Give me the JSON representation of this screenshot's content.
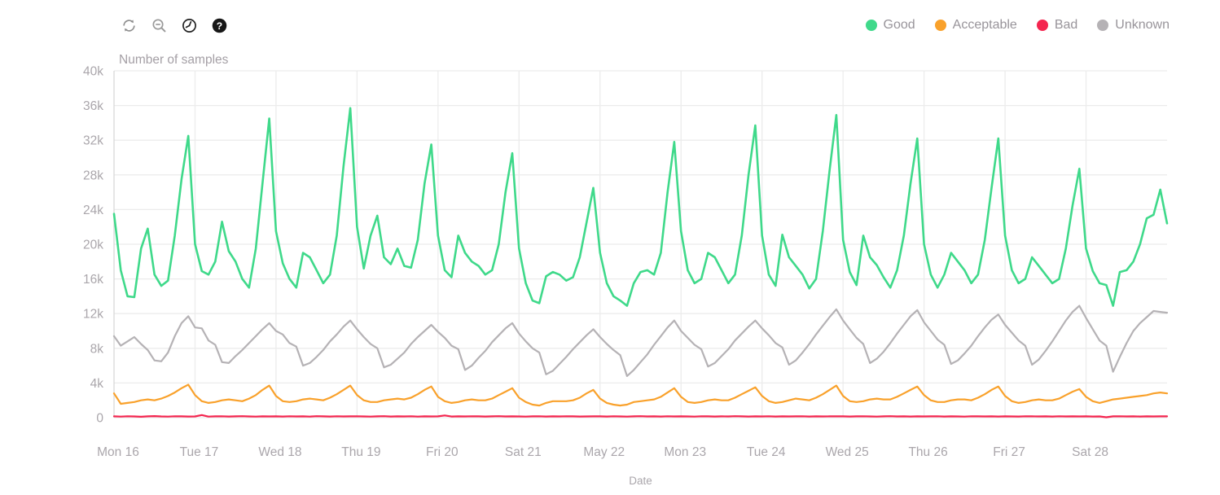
{
  "toolbar": {
    "icons": [
      {
        "id": "refresh"
      },
      {
        "id": "zoom-out"
      },
      {
        "id": "clock"
      },
      {
        "id": "help",
        "glyph": "?"
      }
    ]
  },
  "colors": {
    "good": "#3fd98a",
    "acceptable": "#f9a12b",
    "bad": "#f4254f",
    "unknown": "#b5b2b5",
    "grid": "#ececec",
    "axis_line": "#d8d8d8",
    "tick_text": "#aaa6ab"
  },
  "chart_data": {
    "type": "line",
    "title": "Number of samples",
    "xlabel": "Date",
    "ylabel": "Number of samples",
    "legend_position": "top-right",
    "grid": true,
    "x_tick_labels": [
      "Mon 16",
      "Tue 17",
      "Wed 18",
      "Thu 19",
      "Fri 20",
      "Sat 21",
      "May 22",
      "Mon 23",
      "Tue 24",
      "Wed 25",
      "Thu 26",
      "Fri 27",
      "Sat 28"
    ],
    "y_tick_values_k": [
      0,
      4,
      8,
      12,
      16,
      20,
      24,
      28,
      32,
      36,
      40
    ],
    "y_tick_labels": [
      "0",
      "4k",
      "8k",
      "12k",
      "16k",
      "20k",
      "24k",
      "28k",
      "32k",
      "36k",
      "40k"
    ],
    "ylim_k": [
      0,
      40
    ],
    "x_range_days": 13,
    "sample_step_hours": 2,
    "series": [
      {
        "id": "good",
        "name": "Good",
        "color": "#3fd98a",
        "width": 2.6,
        "z": 4,
        "values_k": [
          23.5,
          17.0,
          14.0,
          13.9,
          19.5,
          21.8,
          16.5,
          15.2,
          15.8,
          21.0,
          27.5,
          32.5,
          20.0,
          16.9,
          16.5,
          18.0,
          22.6,
          19.2,
          18.0,
          16.0,
          15.0,
          19.5,
          27.0,
          34.5,
          21.5,
          17.8,
          16.0,
          15.0,
          19.0,
          18.5,
          17.0,
          15.5,
          16.5,
          21.0,
          29.0,
          35.7,
          22.0,
          17.2,
          21.0,
          23.3,
          18.5,
          17.7,
          19.5,
          17.5,
          17.3,
          20.5,
          27.0,
          31.5,
          21.0,
          17.0,
          16.2,
          21.0,
          19.0,
          18.0,
          17.5,
          16.5,
          17.0,
          20.0,
          26.0,
          30.5,
          19.5,
          15.5,
          13.5,
          13.2,
          16.3,
          16.8,
          16.5,
          15.8,
          16.2,
          18.5,
          22.5,
          26.5,
          19.0,
          15.5,
          14.0,
          13.5,
          12.9,
          15.5,
          16.8,
          17.0,
          16.5,
          19.0,
          26.0,
          31.8,
          21.5,
          17.0,
          15.5,
          16.0,
          19.0,
          18.5,
          17.0,
          15.5,
          16.5,
          21.0,
          28.0,
          33.7,
          21.0,
          16.5,
          15.2,
          21.1,
          18.5,
          17.5,
          16.5,
          14.9,
          16.0,
          21.5,
          28.5,
          34.9,
          20.5,
          16.8,
          15.3,
          21.0,
          18.5,
          17.6,
          16.2,
          15.0,
          17.0,
          21.0,
          27.0,
          32.2,
          20.0,
          16.5,
          15.0,
          16.5,
          19.0,
          18.0,
          17.0,
          15.5,
          16.5,
          20.5,
          26.5,
          32.2,
          21.0,
          17.0,
          15.5,
          16.0,
          18.5,
          17.5,
          16.5,
          15.5,
          16.0,
          19.5,
          24.5,
          28.7,
          19.5,
          16.9,
          15.5,
          15.3,
          12.9,
          16.8,
          17.0,
          18.0,
          20.0,
          23.0,
          23.4,
          26.3,
          22.4
        ]
      },
      {
        "id": "acceptable",
        "name": "Acceptable",
        "color": "#f9a12b",
        "width": 2.2,
        "z": 2,
        "values_k": [
          2.8,
          1.6,
          1.7,
          1.8,
          2.0,
          2.1,
          2.0,
          2.2,
          2.5,
          2.9,
          3.4,
          3.8,
          2.6,
          1.9,
          1.7,
          1.8,
          2.0,
          2.1,
          2.0,
          1.9,
          2.2,
          2.6,
          3.2,
          3.7,
          2.5,
          1.9,
          1.8,
          1.9,
          2.1,
          2.2,
          2.1,
          2.0,
          2.3,
          2.7,
          3.2,
          3.7,
          2.6,
          2.0,
          1.8,
          1.8,
          2.0,
          2.1,
          2.2,
          2.1,
          2.3,
          2.7,
          3.2,
          3.6,
          2.4,
          1.9,
          1.7,
          1.8,
          2.0,
          2.1,
          2.0,
          2.0,
          2.2,
          2.6,
          3.0,
          3.4,
          2.3,
          1.8,
          1.5,
          1.4,
          1.7,
          1.9,
          1.9,
          1.9,
          2.0,
          2.3,
          2.8,
          3.2,
          2.2,
          1.7,
          1.5,
          1.4,
          1.5,
          1.8,
          1.9,
          2.0,
          2.1,
          2.4,
          2.9,
          3.4,
          2.4,
          1.8,
          1.7,
          1.8,
          2.0,
          2.1,
          2.0,
          2.0,
          2.3,
          2.7,
          3.1,
          3.5,
          2.5,
          1.9,
          1.7,
          1.8,
          2.0,
          2.2,
          2.1,
          2.0,
          2.3,
          2.7,
          3.2,
          3.7,
          2.5,
          1.9,
          1.8,
          1.9,
          2.1,
          2.2,
          2.1,
          2.1,
          2.4,
          2.8,
          3.2,
          3.6,
          2.6,
          2.0,
          1.8,
          1.8,
          2.0,
          2.1,
          2.1,
          2.0,
          2.3,
          2.7,
          3.2,
          3.6,
          2.5,
          1.9,
          1.7,
          1.8,
          2.0,
          2.1,
          2.0,
          2.0,
          2.2,
          2.6,
          3.0,
          3.3,
          2.4,
          1.9,
          1.7,
          1.9,
          2.1,
          2.2,
          2.3,
          2.4,
          2.5,
          2.6,
          2.8,
          2.9,
          2.8
        ]
      },
      {
        "id": "bad",
        "name": "Bad",
        "color": "#f4254f",
        "width": 2.2,
        "z": 3,
        "values_k": [
          0.15,
          0.12,
          0.16,
          0.14,
          0.1,
          0.15,
          0.18,
          0.14,
          0.12,
          0.16,
          0.15,
          0.13,
          0.14,
          0.3,
          0.12,
          0.15,
          0.16,
          0.13,
          0.15,
          0.17,
          0.14,
          0.12,
          0.15,
          0.14,
          0.15,
          0.13,
          0.16,
          0.14,
          0.15,
          0.12,
          0.17,
          0.15,
          0.13,
          0.16,
          0.14,
          0.15,
          0.16,
          0.14,
          0.12,
          0.15,
          0.17,
          0.13,
          0.15,
          0.14,
          0.16,
          0.12,
          0.15,
          0.14,
          0.15,
          0.25,
          0.13,
          0.15,
          0.14,
          0.16,
          0.15,
          0.13,
          0.15,
          0.17,
          0.14,
          0.15,
          0.14,
          0.12,
          0.15,
          0.16,
          0.13,
          0.15,
          0.14,
          0.16,
          0.15,
          0.13,
          0.14,
          0.15,
          0.15,
          0.13,
          0.16,
          0.14,
          0.12,
          0.15,
          0.17,
          0.14,
          0.15,
          0.13,
          0.16,
          0.14,
          0.15,
          0.14,
          0.12,
          0.16,
          0.15,
          0.13,
          0.15,
          0.14,
          0.17,
          0.15,
          0.13,
          0.15,
          0.14,
          0.16,
          0.13,
          0.15,
          0.14,
          0.15,
          0.16,
          0.13,
          0.15,
          0.14,
          0.15,
          0.16,
          0.15,
          0.13,
          0.15,
          0.16,
          0.14,
          0.12,
          0.15,
          0.17,
          0.14,
          0.15,
          0.13,
          0.15,
          0.14,
          0.15,
          0.16,
          0.13,
          0.15,
          0.14,
          0.12,
          0.16,
          0.15,
          0.14,
          0.15,
          0.13,
          0.15,
          0.14,
          0.13,
          0.16,
          0.15,
          0.14,
          0.15,
          0.13,
          0.16,
          0.14,
          0.15,
          0.14,
          0.15,
          0.13,
          0.14,
          0.05,
          0.15,
          0.16,
          0.14,
          0.15,
          0.13,
          0.15,
          0.14,
          0.15,
          0.15
        ]
      },
      {
        "id": "unknown",
        "name": "Unknown",
        "color": "#b5b2b5",
        "width": 2.2,
        "z": 1,
        "values_k": [
          9.4,
          8.3,
          8.8,
          9.3,
          8.5,
          7.8,
          6.6,
          6.5,
          7.5,
          9.4,
          10.9,
          11.7,
          10.4,
          10.3,
          8.9,
          8.4,
          6.4,
          6.3,
          7.1,
          7.8,
          8.6,
          9.4,
          10.2,
          10.9,
          10.0,
          9.6,
          8.6,
          8.2,
          6.0,
          6.3,
          7.0,
          7.8,
          8.8,
          9.6,
          10.5,
          11.2,
          10.2,
          9.3,
          8.5,
          8.0,
          5.8,
          6.1,
          6.8,
          7.5,
          8.5,
          9.3,
          10.0,
          10.7,
          9.9,
          9.2,
          8.3,
          7.9,
          5.5,
          6.0,
          6.9,
          7.7,
          8.7,
          9.5,
          10.3,
          10.9,
          9.7,
          8.8,
          8.0,
          7.5,
          5.0,
          5.4,
          6.2,
          7.0,
          7.9,
          8.7,
          9.5,
          10.2,
          9.3,
          8.5,
          7.8,
          7.2,
          4.8,
          5.5,
          6.4,
          7.3,
          8.4,
          9.4,
          10.4,
          11.2,
          10.0,
          9.2,
          8.4,
          7.9,
          5.9,
          6.3,
          7.1,
          7.9,
          8.9,
          9.7,
          10.5,
          11.2,
          10.3,
          9.5,
          8.6,
          8.1,
          6.1,
          6.6,
          7.5,
          8.5,
          9.6,
          10.6,
          11.6,
          12.5,
          11.2,
          10.2,
          9.2,
          8.5,
          6.3,
          6.8,
          7.6,
          8.6,
          9.7,
          10.7,
          11.7,
          12.4,
          11.0,
          10.0,
          9.0,
          8.4,
          6.2,
          6.6,
          7.4,
          8.3,
          9.4,
          10.4,
          11.3,
          11.9,
          10.7,
          9.8,
          8.9,
          8.3,
          6.1,
          6.7,
          7.7,
          8.8,
          10.0,
          11.2,
          12.2,
          12.9,
          11.5,
          10.2,
          8.9,
          8.3,
          5.3,
          7.0,
          8.6,
          10.0,
          10.9,
          11.6,
          12.3,
          12.2,
          12.1
        ]
      }
    ]
  }
}
